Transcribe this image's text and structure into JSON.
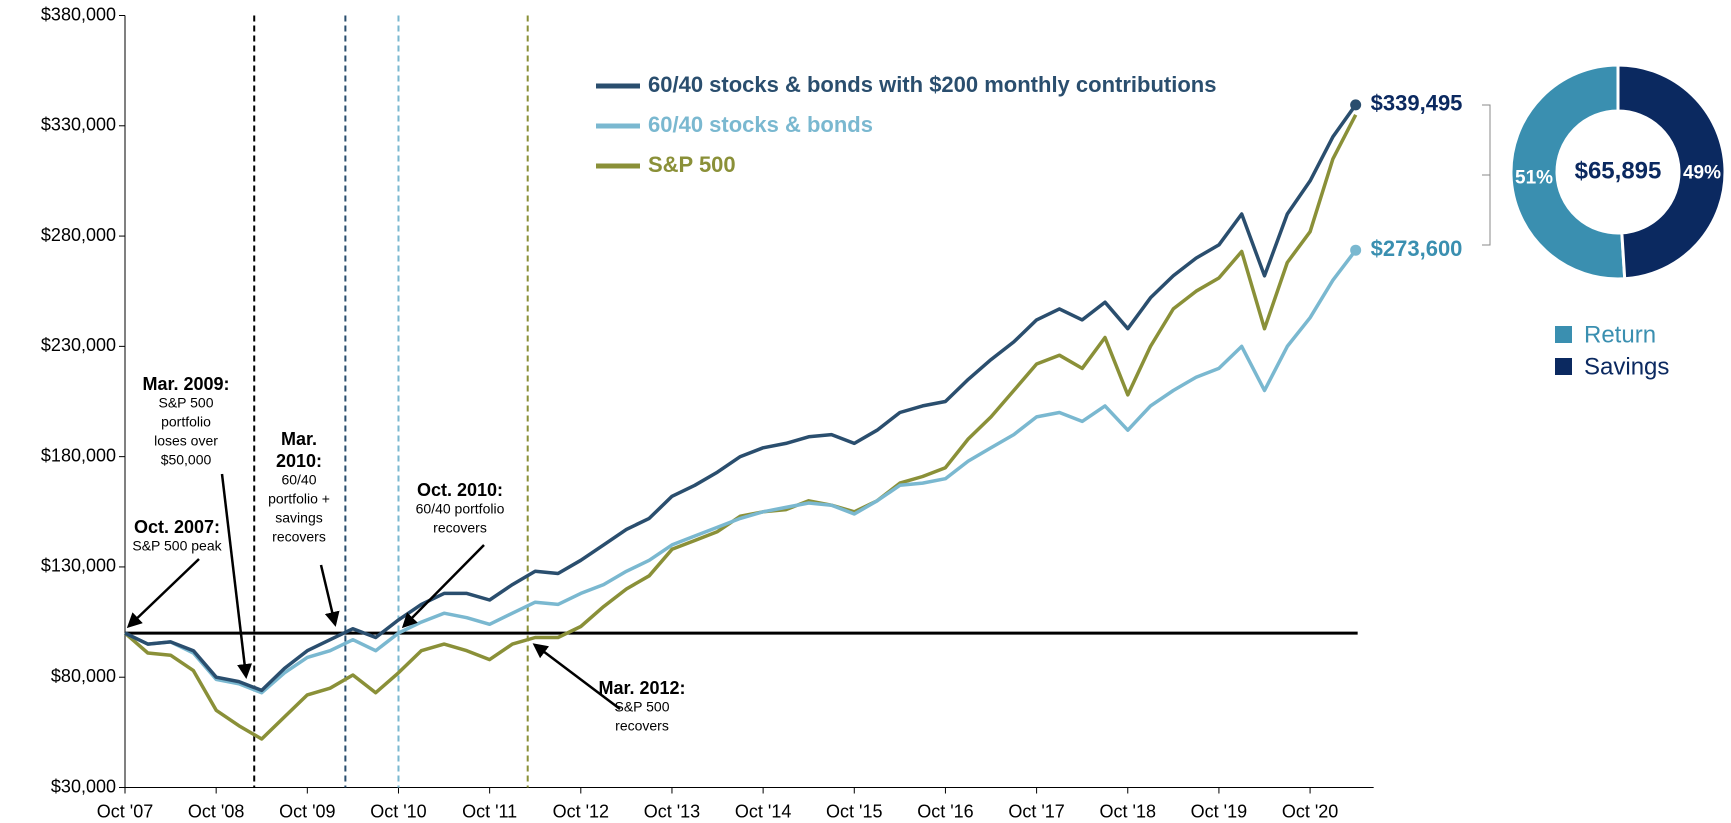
{
  "chart_data": [
    {
      "type": "line",
      "categories": [
        "Oct '07",
        null,
        null,
        null,
        "Oct '08",
        null,
        null,
        null,
        "Oct '09",
        null,
        null,
        null,
        "Oct '10",
        null,
        null,
        null,
        "Oct '11",
        null,
        null,
        null,
        "Oct '12",
        null,
        null,
        null,
        "Oct '13",
        null,
        null,
        null,
        "Oct '14",
        null,
        null,
        null,
        "Oct '15",
        null,
        null,
        null,
        "Oct '16",
        null,
        null,
        null,
        "Oct '17",
        null,
        null,
        null,
        "Oct '18",
        null,
        null,
        null,
        "Oct '19",
        null,
        null,
        null,
        "Oct '20",
        null,
        null
      ],
      "series": [
        {
          "name": "60/40 stocks & bonds with $200 monthly contributions",
          "color": "#2a4e6e",
          "end_label": "$339,495",
          "values": [
            100000,
            95000,
            96000,
            92000,
            80000,
            78000,
            74000,
            84000,
            92000,
            97000,
            102000,
            98000,
            106000,
            113000,
            118000,
            118000,
            115000,
            122000,
            128000,
            127000,
            133000,
            140000,
            147000,
            152000,
            162000,
            167000,
            173000,
            180000,
            184000,
            186000,
            189000,
            190000,
            186000,
            192000,
            200000,
            203000,
            205000,
            215000,
            224000,
            232000,
            242000,
            247000,
            242000,
            250000,
            238000,
            252000,
            262000,
            270000,
            276000,
            290000,
            262000,
            290000,
            305000,
            325000,
            339495
          ]
        },
        {
          "name": "60/40 stocks & bonds",
          "color": "#7ab8d0",
          "end_label": "$273,600",
          "values": [
            100000,
            95000,
            96000,
            91000,
            79000,
            77000,
            73000,
            82000,
            89000,
            92000,
            97000,
            92000,
            100000,
            105000,
            109000,
            107000,
            104000,
            109000,
            114000,
            113000,
            118000,
            122000,
            128000,
            133000,
            140000,
            144000,
            148000,
            152000,
            155000,
            157000,
            159000,
            158000,
            154000,
            160000,
            167000,
            168000,
            170000,
            178000,
            184000,
            190000,
            198000,
            200000,
            196000,
            203000,
            192000,
            203000,
            210000,
            216000,
            220000,
            230000,
            210000,
            230000,
            243000,
            260000,
            273600
          ]
        },
        {
          "name": "S&P 500",
          "color": "#8a9038",
          "values": [
            100000,
            91000,
            90000,
            83000,
            65000,
            58000,
            52000,
            62000,
            72000,
            75000,
            81000,
            73000,
            82000,
            92000,
            95000,
            92000,
            88000,
            95000,
            98000,
            98000,
            103000,
            112000,
            120000,
            126000,
            138000,
            142000,
            146000,
            153000,
            155000,
            156000,
            160000,
            158000,
            155000,
            160000,
            168000,
            171000,
            175000,
            188000,
            198000,
            210000,
            222000,
            226000,
            220000,
            234000,
            208000,
            230000,
            247000,
            255000,
            261000,
            273000,
            238000,
            268000,
            282000,
            315000,
            335000
          ]
        }
      ],
      "ylim": [
        30000,
        380000
      ],
      "yticks": [
        {
          "value": 30000,
          "label": "$30,000"
        },
        {
          "value": 80000,
          "label": "$80,000"
        },
        {
          "value": 130000,
          "label": "$130,000"
        },
        {
          "value": 180000,
          "label": "$180,000"
        },
        {
          "value": 230000,
          "label": "$230,000"
        },
        {
          "value": 280000,
          "label": "$280,000"
        },
        {
          "value": 330000,
          "label": "$330,000"
        },
        {
          "value": 380000,
          "label": "$380,000"
        }
      ],
      "reference_line": 100000,
      "annotations": [
        {
          "title": [
            "Oct. 2007:"
          ],
          "body": [
            "S&P 500 peak"
          ]
        },
        {
          "title": [
            "Mar. 2009:"
          ],
          "body": [
            "S&P 500",
            "portfolio",
            "loses over",
            "$50,000"
          ],
          "color": "#000000"
        },
        {
          "title": [
            "Mar.",
            "2010:"
          ],
          "body": [
            "60/40",
            "portfolio +",
            "savings",
            "recovers"
          ],
          "color": "#2a4e6e"
        },
        {
          "title": [
            "Oct. 2010:"
          ],
          "body": [
            "60/40 portfolio",
            "recovers"
          ],
          "color": "#7ab8d0"
        },
        {
          "title": [
            "Mar. 2012:"
          ],
          "body": [
            "S&P 500",
            "recovers"
          ],
          "color": "#8a9038"
        }
      ]
    },
    {
      "type": "pie",
      "center_label": "$65,895",
      "categories": [
        "Return",
        "Savings"
      ],
      "values": [
        51,
        49
      ],
      "value_labels": [
        "51%",
        "49%"
      ],
      "colors": [
        "#3a8fb0",
        "#0b2960"
      ]
    }
  ]
}
